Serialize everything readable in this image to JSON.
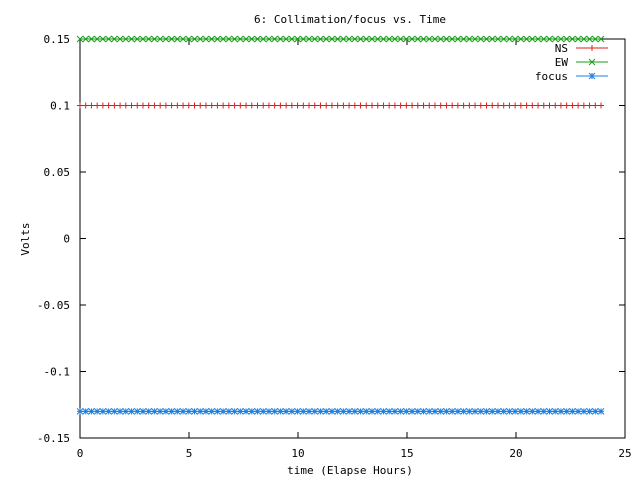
{
  "chart_data": {
    "type": "line",
    "title": "6: Collimation/focus vs. Time",
    "xlabel": "time (Elapse Hours)",
    "ylabel": "Volts",
    "xlim": [
      0,
      25
    ],
    "ylim": [
      -0.15,
      0.15
    ],
    "x_ticks": [
      "0",
      "5",
      "10",
      "15",
      "20",
      "25"
    ],
    "y_ticks": [
      "0.15",
      "0.1",
      "0.05",
      "0",
      "-0.05",
      "-0.1",
      "-0.15"
    ],
    "x_tick_values": [
      0,
      5,
      10,
      15,
      20,
      25
    ],
    "y_tick_values": [
      0.15,
      0.1,
      0.05,
      0,
      -0.05,
      -0.1,
      -0.15
    ],
    "grid": false,
    "legend_position": "top-right",
    "x_start": 0,
    "x_end": 23.9,
    "point_count": 92,
    "series": [
      {
        "name": "NS",
        "constant_value": 0.1,
        "color": "#e41a1c",
        "marker": "plus"
      },
      {
        "name": "EW",
        "constant_value": 0.15,
        "color": "#1a9f1a",
        "marker": "cross"
      },
      {
        "name": "focus",
        "constant_value": -0.13,
        "color": "#1e7fe0",
        "marker": "star"
      }
    ]
  }
}
